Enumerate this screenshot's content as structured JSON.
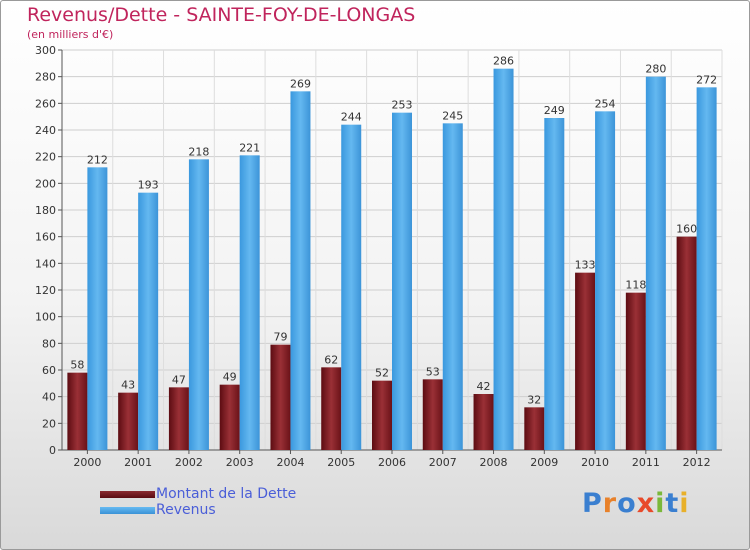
{
  "title": "Revenus/Dette - SAINTE-FOY-DE-LONGAS",
  "subtitle": "(en milliers d'€)",
  "logo_text": "Proxiti",
  "colors": {
    "title": "#c0245c",
    "legend_text": "#4a5ed8",
    "dette": "#7d1e24",
    "revenus": "#4ea8e8"
  },
  "chart_data": {
    "type": "bar",
    "categories": [
      "2000",
      "2001",
      "2002",
      "2003",
      "2004",
      "2005",
      "2006",
      "2007",
      "2008",
      "2009",
      "2010",
      "2011",
      "2012"
    ],
    "series": [
      {
        "name": "Montant de la Dette",
        "values": [
          58,
          43,
          47,
          49,
          79,
          62,
          52,
          53,
          42,
          32,
          133,
          118,
          160
        ]
      },
      {
        "name": "Revenus",
        "values": [
          212,
          193,
          218,
          221,
          269,
          244,
          253,
          245,
          286,
          249,
          254,
          280,
          272
        ]
      }
    ],
    "ylim": [
      0,
      300
    ],
    "yticks": [
      0,
      20,
      40,
      60,
      80,
      100,
      120,
      140,
      160,
      180,
      200,
      220,
      240,
      260,
      280,
      300
    ],
    "grid": true,
    "legend_position": "bottom-left"
  }
}
